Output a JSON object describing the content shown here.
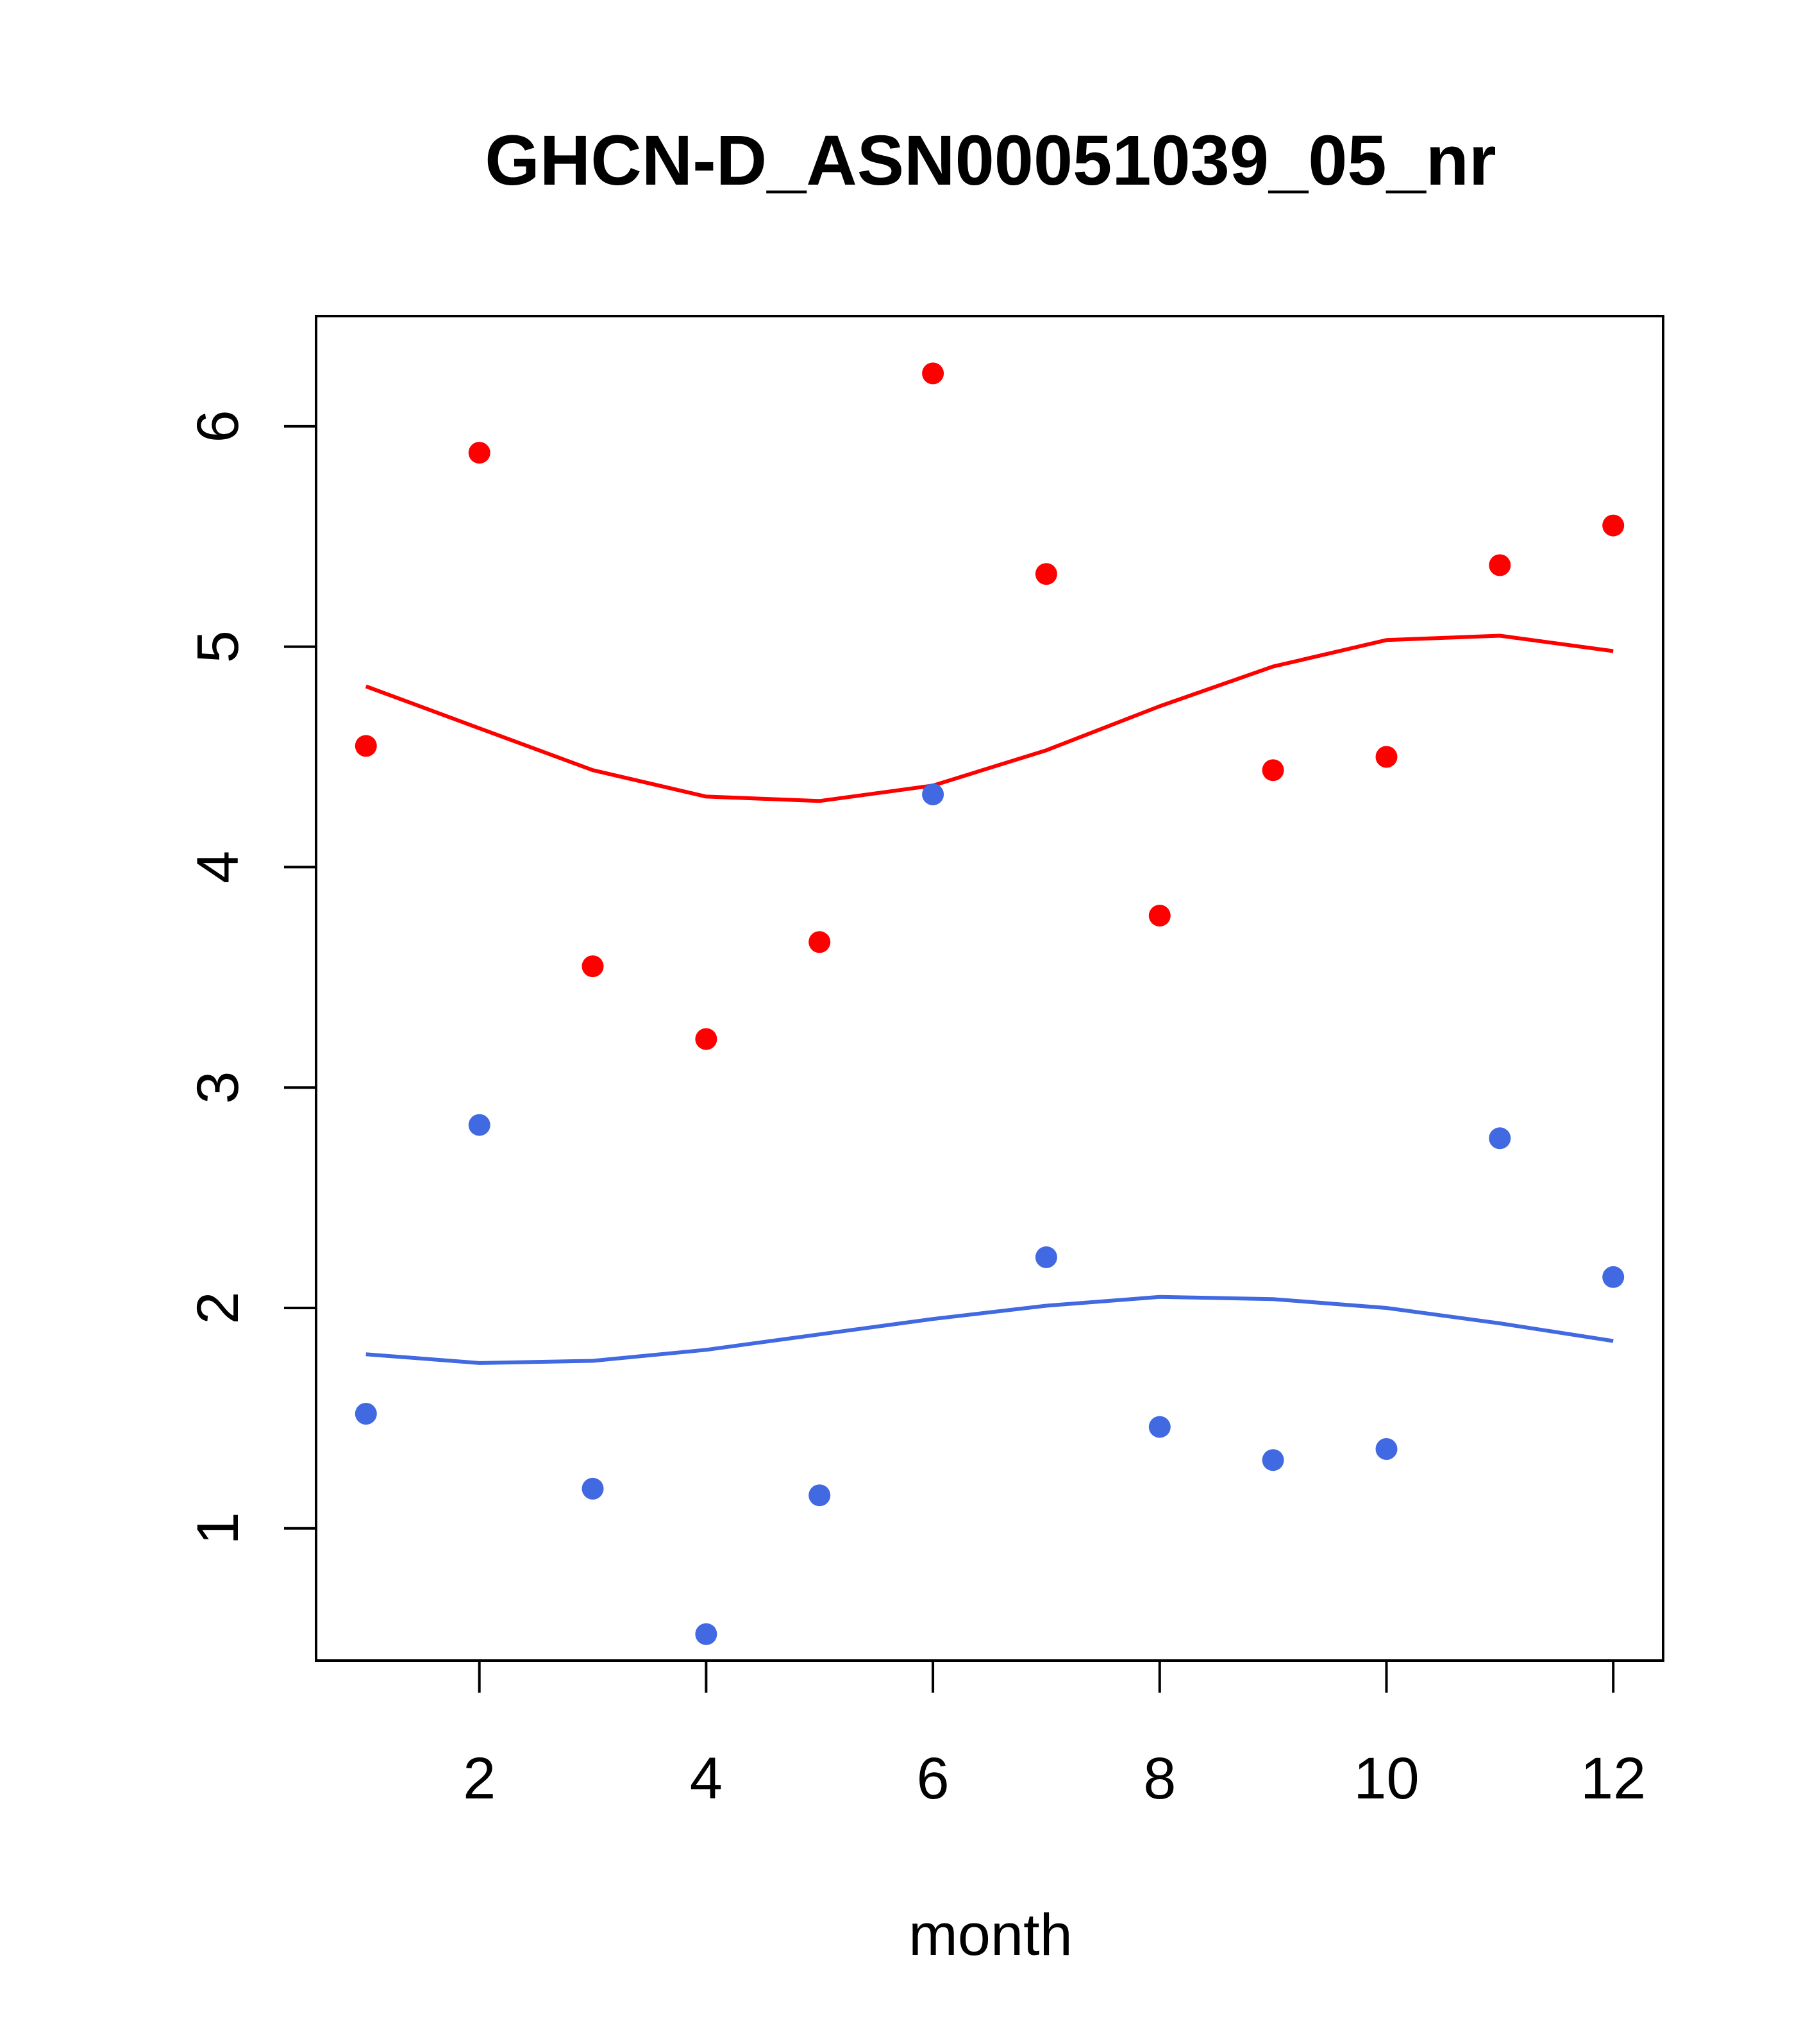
{
  "chart_data": {
    "type": "scatter",
    "title": "GHCN-D_ASN00051039_05_nr",
    "xlabel": "month",
    "ylabel": "",
    "xlim": [
      0.56,
      12.44
    ],
    "ylim": [
      0.4,
      6.5
    ],
    "xticks": [
      2,
      4,
      6,
      8,
      10,
      12
    ],
    "yticks": [
      1,
      2,
      3,
      4,
      5,
      6
    ],
    "grid": false,
    "series": [
      {
        "color": "#ff0000",
        "x": [
          1,
          2,
          3,
          4,
          5,
          6,
          7,
          8,
          9,
          10,
          11,
          12
        ],
        "points": [
          4.55,
          5.88,
          3.55,
          3.22,
          3.66,
          6.24,
          5.33,
          3.78,
          4.44,
          4.5,
          5.37,
          5.55
        ],
        "line": [
          4.82,
          4.63,
          4.44,
          4.32,
          4.3,
          4.37,
          4.53,
          4.73,
          4.91,
          5.03,
          5.05,
          4.98
        ]
      },
      {
        "color": "#4169e1",
        "x": [
          1,
          2,
          3,
          4,
          5,
          6,
          7,
          8,
          9,
          10,
          11,
          12
        ],
        "points": [
          1.52,
          2.83,
          1.18,
          0.52,
          1.15,
          4.33,
          2.23,
          1.46,
          1.31,
          1.36,
          2.77,
          2.14
        ],
        "line": [
          1.79,
          1.75,
          1.76,
          1.81,
          1.88,
          1.95,
          2.01,
          2.05,
          2.04,
          2.0,
          1.93,
          1.85
        ]
      }
    ]
  }
}
